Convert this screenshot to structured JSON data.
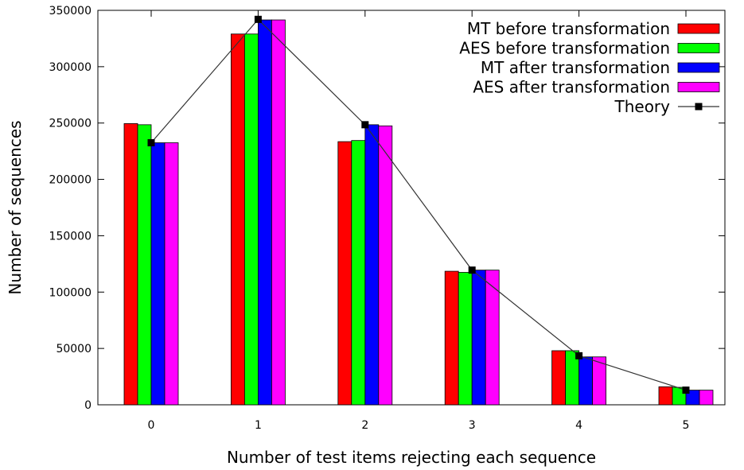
{
  "chart_data": {
    "type": "bar",
    "xlabel": "Number of test items rejecting each sequence",
    "ylabel": "Number of sequences",
    "categories": [
      "0",
      "1",
      "2",
      "3",
      "4",
      "5"
    ],
    "ylim": [
      0,
      350000
    ],
    "yticks": [
      0,
      50000,
      100000,
      150000,
      200000,
      250000,
      300000,
      350000
    ],
    "ytick_labels": [
      "0",
      "50000",
      "100000",
      "150000",
      "200000",
      "250000",
      "300000",
      "350000"
    ],
    "grid": false,
    "legend_position": "top-right",
    "series": [
      {
        "name": "MT before transformation",
        "kind": "bar",
        "color": "#ff0000",
        "values": [
          249500,
          329000,
          233500,
          118500,
          48000,
          16000
        ]
      },
      {
        "name": "AES before transformation",
        "kind": "bar",
        "color": "#00ff00",
        "values": [
          248500,
          329000,
          234500,
          117500,
          48000,
          15500
        ]
      },
      {
        "name": "MT after transformation",
        "kind": "bar",
        "color": "#0000ff",
        "values": [
          232500,
          341500,
          248500,
          119500,
          42500,
          13000
        ]
      },
      {
        "name": "AES after transformation",
        "kind": "bar",
        "color": "#ff00ff",
        "values": [
          232500,
          341500,
          247500,
          119500,
          42500,
          13000
        ]
      },
      {
        "name": "Theory",
        "kind": "line",
        "color": "#333333",
        "values": [
          232500,
          342000,
          248500,
          119500,
          43500,
          13000
        ]
      }
    ]
  }
}
